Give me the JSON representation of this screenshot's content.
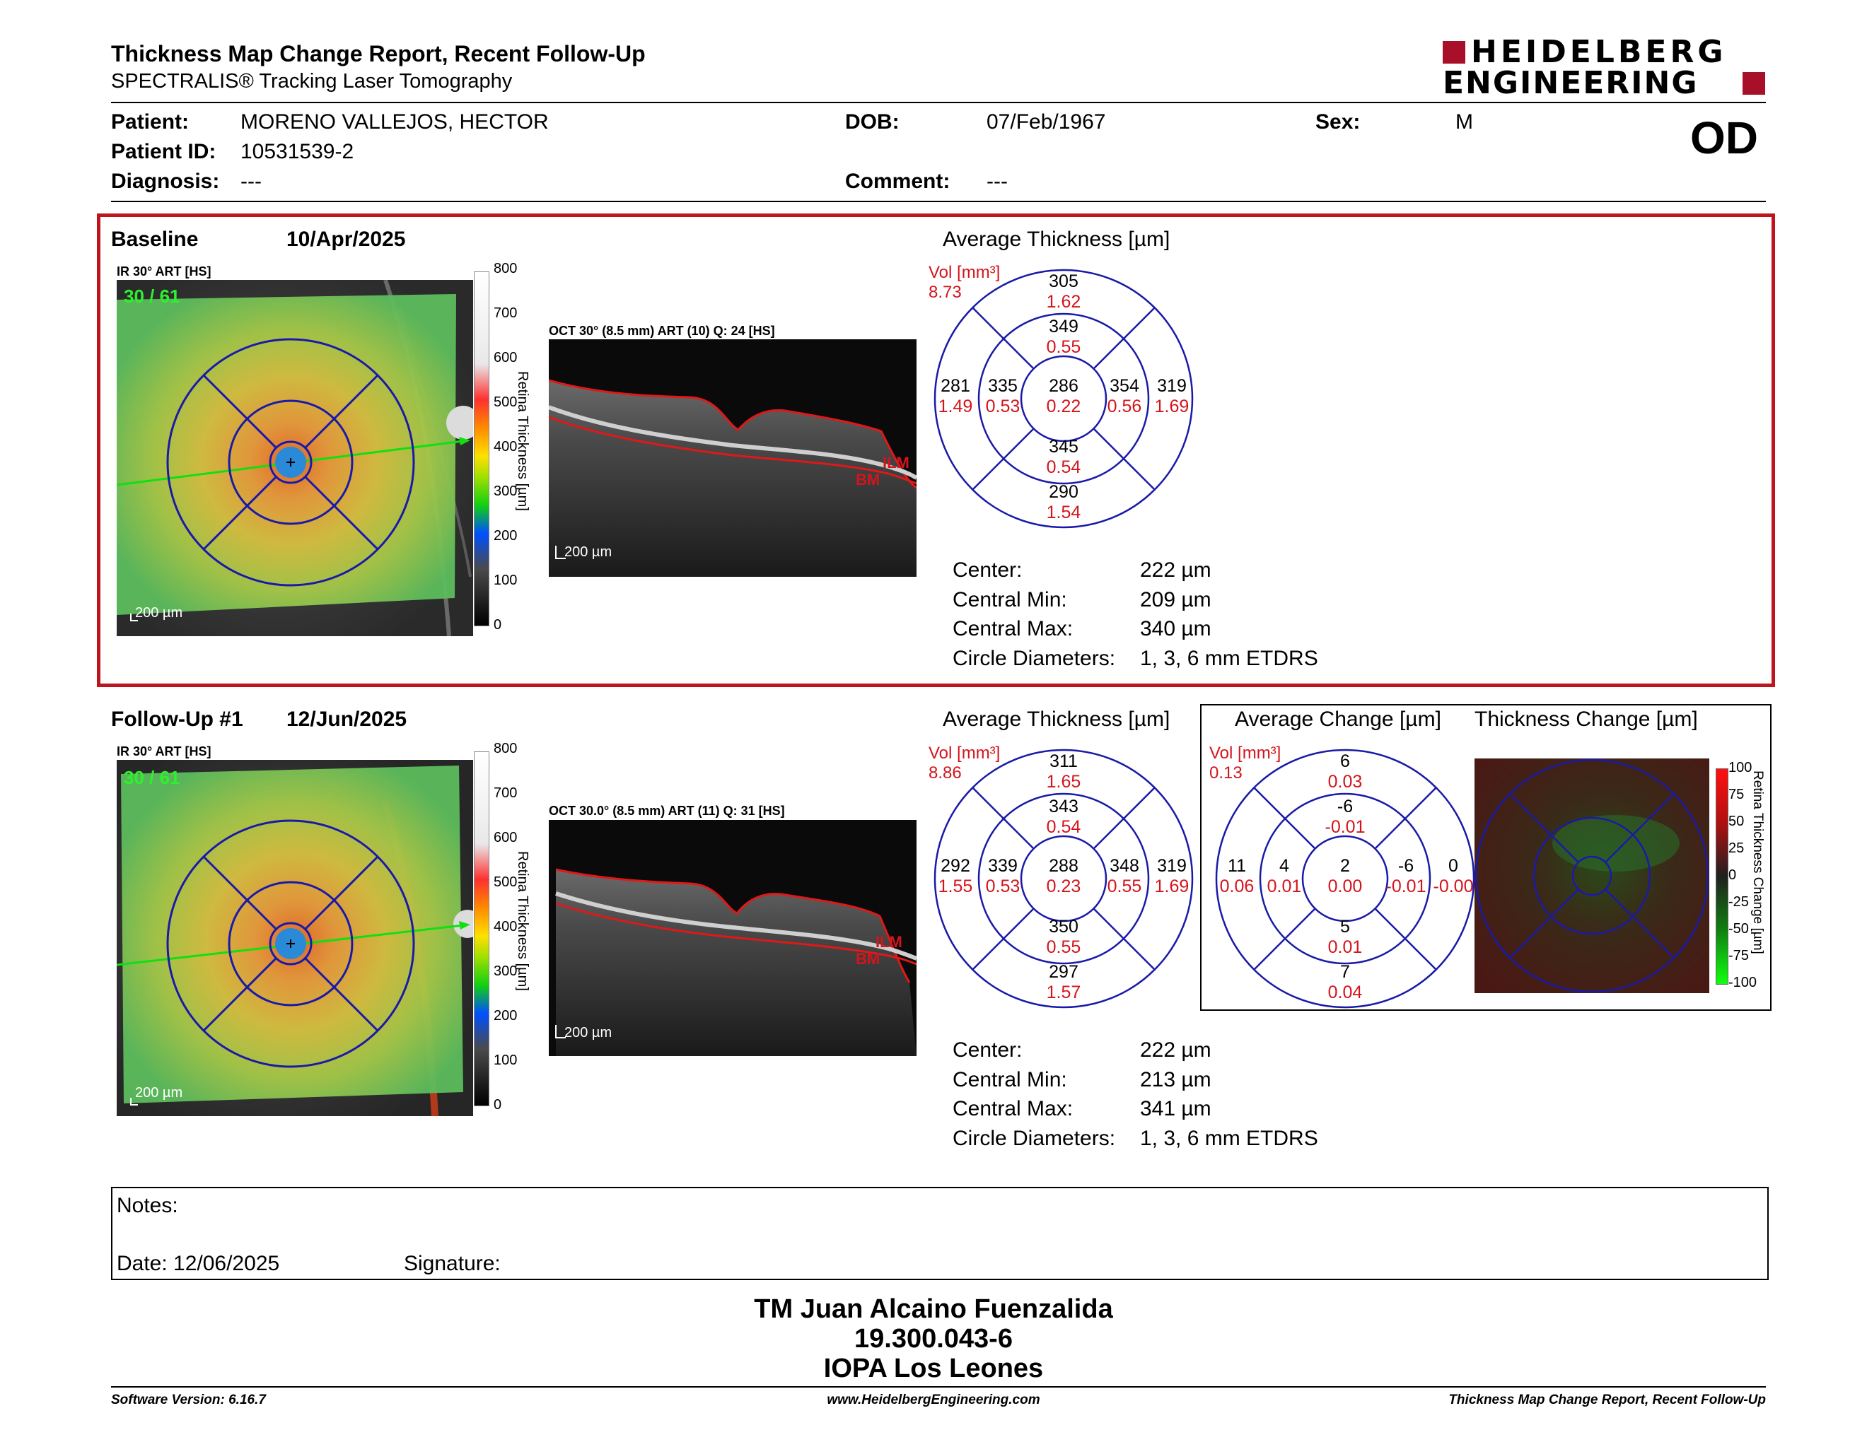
{
  "header": {
    "title": "Thickness Map Change Report, Recent Follow-Up",
    "subtitle": "SPECTRALIS® Tracking Laser Tomography",
    "brand_line1": "HEIDELBERG",
    "brand_line2": "ENGINEERING",
    "eye": "OD"
  },
  "patient": {
    "patient_label": "Patient:",
    "patient_value": "MORENO VALLEJOS, HECTOR",
    "id_label": "Patient ID:",
    "id_value": "10531539-2",
    "diagnosis_label": "Diagnosis:",
    "diagnosis_value": "---",
    "dob_label": "DOB:",
    "dob_value": "07/Feb/1967",
    "comment_label": "Comment:",
    "comment_value": "---",
    "sex_label": "Sex:",
    "sex_value": "M"
  },
  "baseline": {
    "label": "Baseline",
    "date": "10/Apr/2025",
    "ir_label": "IR 30° ART [HS]",
    "quality": "30 / 61",
    "oct_label": "OCT 30° (8.5 mm) ART (10) Q: 24 [HS]",
    "scale": "200 µm",
    "avg_title": "Average Thickness [µm]",
    "vol_label": "Vol [mm³]",
    "vol_value": "8.73",
    "etdrs": {
      "outer_sup": {
        "t": "305",
        "v": "1.62"
      },
      "inner_sup": {
        "t": "349",
        "v": "0.55"
      },
      "outer_temp": {
        "t": "281",
        "v": "1.49"
      },
      "inner_temp": {
        "t": "335",
        "v": "0.53"
      },
      "center": {
        "t": "286",
        "v": "0.22"
      },
      "inner_nasal": {
        "t": "354",
        "v": "0.56"
      },
      "outer_nasal": {
        "t": "319",
        "v": "1.69"
      },
      "inner_inf": {
        "t": "345",
        "v": "0.54"
      },
      "outer_inf": {
        "t": "290",
        "v": "1.54"
      }
    },
    "stats": [
      {
        "label": "Center:",
        "value": "222 µm"
      },
      {
        "label": "Central Min:",
        "value": "209 µm"
      },
      {
        "label": "Central Max:",
        "value": "340 µm"
      },
      {
        "label": "Circle Diameters:",
        "value": "1, 3, 6 mm ETDRS"
      }
    ]
  },
  "followup": {
    "label": "Follow-Up #1",
    "date": "12/Jun/2025",
    "ir_label": "IR 30° ART [HS]",
    "quality": "30 / 61",
    "oct_label": "OCT 30.0° (8.5 mm) ART (11) Q: 31 [HS]",
    "scale": "200 µm",
    "avg_title": "Average Thickness [µm]",
    "vol_label": "Vol [mm³]",
    "vol_value": "8.86",
    "etdrs": {
      "outer_sup": {
        "t": "311",
        "v": "1.65"
      },
      "inner_sup": {
        "t": "343",
        "v": "0.54"
      },
      "outer_temp": {
        "t": "292",
        "v": "1.55"
      },
      "inner_temp": {
        "t": "339",
        "v": "0.53"
      },
      "center": {
        "t": "288",
        "v": "0.23"
      },
      "inner_nasal": {
        "t": "348",
        "v": "0.55"
      },
      "outer_nasal": {
        "t": "319",
        "v": "1.69"
      },
      "inner_inf": {
        "t": "350",
        "v": "0.55"
      },
      "outer_inf": {
        "t": "297",
        "v": "1.57"
      }
    },
    "stats": [
      {
        "label": "Center:",
        "value": "222 µm"
      },
      {
        "label": "Central Min:",
        "value": "213 µm"
      },
      {
        "label": "Central Max:",
        "value": "341 µm"
      },
      {
        "label": "Circle Diameters:",
        "value": "1, 3, 6 mm ETDRS"
      }
    ],
    "change_title": "Average Change [µm]",
    "change_vol_label": "Vol [mm³]",
    "change_vol_value": "0.13",
    "change": {
      "outer_sup": {
        "t": "6",
        "v": "0.03"
      },
      "inner_sup": {
        "t": "-6",
        "v": "-0.01"
      },
      "outer_temp": {
        "t": "11",
        "v": "0.06"
      },
      "inner_temp": {
        "t": "4",
        "v": "0.01"
      },
      "center": {
        "t": "2",
        "v": "0.00"
      },
      "inner_nasal": {
        "t": "-6",
        "v": "-0.01"
      },
      "outer_nasal": {
        "t": "0",
        "v": "-0.00"
      },
      "inner_inf": {
        "t": "5",
        "v": "0.01"
      },
      "outer_inf": {
        "t": "7",
        "v": "0.04"
      }
    },
    "tc_title": "Thickness Change [µm]"
  },
  "thickness_scale": {
    "ticks": [
      "800",
      "700",
      "600",
      "500",
      "400",
      "300",
      "200",
      "100",
      "0"
    ],
    "title": "Retina Thickness [µm]"
  },
  "change_scale": {
    "ticks": [
      "100",
      "75",
      "50",
      "25",
      "0",
      "-25",
      "-50",
      "-75",
      "-100"
    ],
    "title": "Retina Thickness Change [µm]"
  },
  "oct_markers": {
    "ilm": "ILM",
    "bm": "BM"
  },
  "notes": {
    "notes_label": "Notes:",
    "date_label": "Date: 12/06/2025",
    "signature_label": "Signature:"
  },
  "signer": {
    "name": "TM Juan Alcaino Fuenzalida",
    "rut": "19.300.043-6",
    "institution": "IOPA Los Leones"
  },
  "footer": {
    "left": "Software Version: 6.16.7",
    "center": "www.HeidelbergEngineering.com",
    "right": "Thickness Map Change Report, Recent Follow-Up"
  },
  "colors": {
    "accent_red": "#c0141c",
    "value_red": "#d4141c",
    "etdrs_blue": "#1a1aa8",
    "brand_red": "#a8102a"
  }
}
